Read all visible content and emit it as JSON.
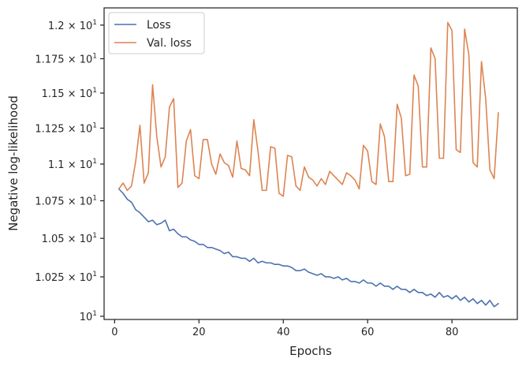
{
  "chart_data": {
    "type": "line",
    "title": "",
    "xlabel": "Epochs",
    "ylabel": "Negative log-likelihood",
    "xlim": [
      -2.5,
      95.5
    ],
    "ylim": [
      9.98,
      12.13
    ],
    "yscale": "log",
    "grid": false,
    "legend_position": "top-left",
    "x_ticks": [
      0,
      20,
      40,
      60,
      80
    ],
    "x_tick_labels": [
      "0",
      "20",
      "40",
      "60",
      "80"
    ],
    "y_ticks": [
      10.0,
      10.25,
      10.5,
      10.75,
      11.0,
      11.25,
      11.5,
      11.75,
      12.0
    ],
    "y_tick_mantissas": [
      "",
      "1.025",
      "1.05",
      "1.075",
      "1.1",
      "1.125",
      "1.15",
      "1.175",
      "1.2"
    ],
    "y_tick_base": "10",
    "y_tick_exponent": "1",
    "series": [
      {
        "name": "Loss",
        "color": "#4c72b0",
        "x": [
          1,
          2,
          3,
          4,
          5,
          6,
          7,
          8,
          9,
          10,
          11,
          12,
          13,
          14,
          15,
          16,
          17,
          18,
          19,
          20,
          21,
          22,
          23,
          24,
          25,
          26,
          27,
          28,
          29,
          30,
          31,
          32,
          33,
          34,
          35,
          36,
          37,
          38,
          39,
          40,
          41,
          42,
          43,
          44,
          45,
          46,
          47,
          48,
          49,
          50,
          51,
          52,
          53,
          54,
          55,
          56,
          57,
          58,
          59,
          60,
          61,
          62,
          63,
          64,
          65,
          66,
          67,
          68,
          69,
          70,
          71,
          72,
          73,
          74,
          75,
          76,
          77,
          78,
          79,
          80,
          81,
          82,
          83,
          84,
          85,
          86,
          87,
          88,
          89,
          90,
          91
        ],
        "values": [
          10.83,
          10.8,
          10.76,
          10.74,
          10.69,
          10.67,
          10.64,
          10.61,
          10.62,
          10.59,
          10.6,
          10.62,
          10.55,
          10.56,
          10.53,
          10.51,
          10.51,
          10.49,
          10.48,
          10.46,
          10.46,
          10.44,
          10.44,
          10.43,
          10.42,
          10.4,
          10.41,
          10.38,
          10.38,
          10.37,
          10.37,
          10.35,
          10.37,
          10.34,
          10.35,
          10.34,
          10.34,
          10.33,
          10.33,
          10.32,
          10.32,
          10.31,
          10.29,
          10.29,
          10.3,
          10.28,
          10.27,
          10.26,
          10.27,
          10.25,
          10.25,
          10.24,
          10.25,
          10.23,
          10.24,
          10.22,
          10.22,
          10.21,
          10.23,
          10.21,
          10.21,
          10.19,
          10.21,
          10.19,
          10.19,
          10.17,
          10.19,
          10.17,
          10.17,
          10.15,
          10.17,
          10.15,
          10.15,
          10.13,
          10.14,
          10.12,
          10.15,
          10.12,
          10.13,
          10.11,
          10.13,
          10.1,
          10.12,
          10.09,
          10.11,
          10.08,
          10.1,
          10.07,
          10.1,
          10.06,
          10.08
        ]
      },
      {
        "name": "Val. loss",
        "color": "#dd8452",
        "x": [
          1,
          2,
          3,
          4,
          5,
          6,
          7,
          8,
          9,
          10,
          11,
          12,
          13,
          14,
          15,
          16,
          17,
          18,
          19,
          20,
          21,
          22,
          23,
          24,
          25,
          26,
          27,
          28,
          29,
          30,
          31,
          32,
          33,
          34,
          35,
          36,
          37,
          38,
          39,
          40,
          41,
          42,
          43,
          44,
          45,
          46,
          47,
          48,
          49,
          50,
          51,
          52,
          53,
          54,
          55,
          56,
          57,
          58,
          59,
          60,
          61,
          62,
          63,
          64,
          65,
          66,
          67,
          68,
          69,
          70,
          71,
          72,
          73,
          74,
          75,
          76,
          77,
          78,
          79,
          80,
          81,
          82,
          83,
          84,
          85,
          86,
          87,
          88,
          89,
          90,
          91
        ],
        "values": [
          10.83,
          10.87,
          10.82,
          10.85,
          11.02,
          11.27,
          10.87,
          10.94,
          11.56,
          11.19,
          10.98,
          11.05,
          11.4,
          11.46,
          10.84,
          10.87,
          11.16,
          11.24,
          10.92,
          10.9,
          11.17,
          11.17,
          11.0,
          10.93,
          11.07,
          11.01,
          10.99,
          10.91,
          11.16,
          10.97,
          10.96,
          10.92,
          11.31,
          11.09,
          10.82,
          10.82,
          11.12,
          11.11,
          10.8,
          10.78,
          11.06,
          11.05,
          10.85,
          10.82,
          10.98,
          10.91,
          10.89,
          10.85,
          10.9,
          10.86,
          10.95,
          10.92,
          10.89,
          10.86,
          10.94,
          10.92,
          10.89,
          10.83,
          11.13,
          11.09,
          10.88,
          10.86,
          11.28,
          11.19,
          10.88,
          10.88,
          11.42,
          11.32,
          10.92,
          10.93,
          11.63,
          11.55,
          10.98,
          10.98,
          11.83,
          11.75,
          11.04,
          11.04,
          12.02,
          11.96,
          11.1,
          11.08,
          11.97,
          11.78,
          11.01,
          10.98,
          11.73,
          11.46,
          10.96,
          10.9,
          11.36
        ]
      }
    ]
  }
}
